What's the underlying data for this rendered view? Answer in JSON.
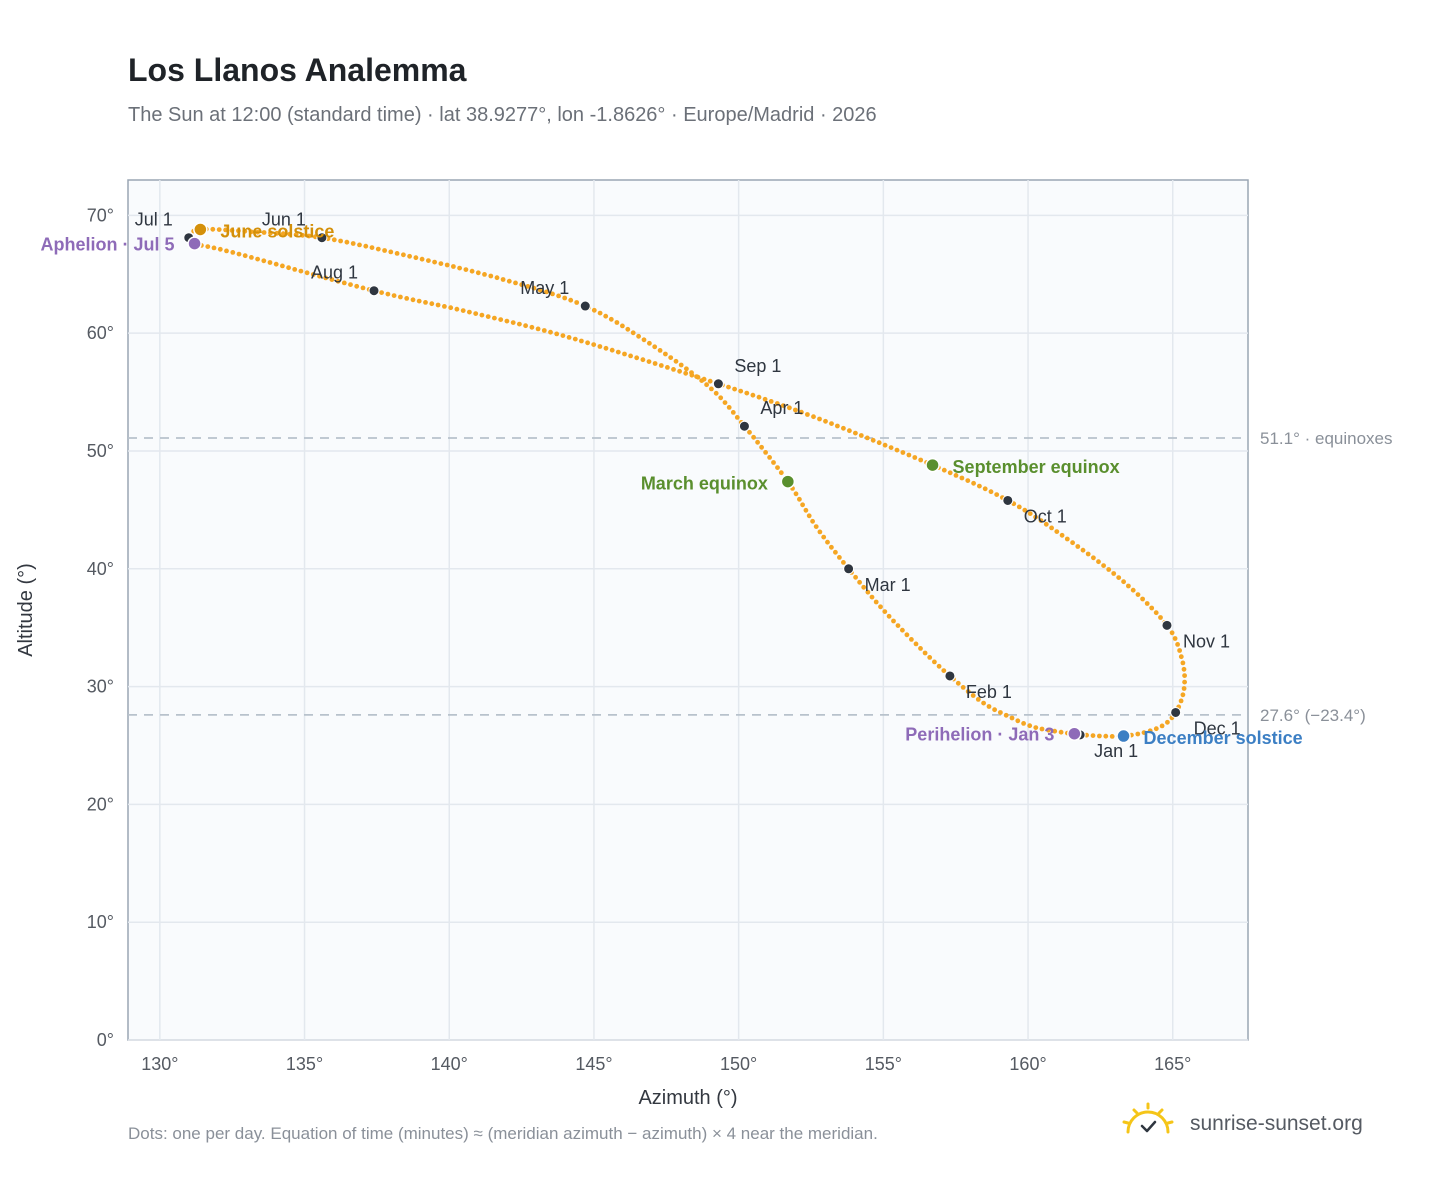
{
  "header": {
    "title": "Los Llanos Analemma",
    "subtitle": "The Sun at 12:00 (standard time) · lat 38.9277°, lon -1.8626° · Europe/Madrid · 2026"
  },
  "footer": {
    "note": "Dots: one per day. Equation of time (minutes) ≈ (meridian azimuth − azimuth) × 4 near the meridian.",
    "brand": "sunrise-sunset.org"
  },
  "colors": {
    "curve": "#f5a623",
    "month_marker": "#2f3640",
    "perihelion": "#8e6bb8",
    "aphelion": "#8e6bb8",
    "equinox": "#5a8f2e",
    "june_solstice": "#d4900a",
    "december_solstice": "#3c7fc4",
    "reference_line": "#b8c2cc",
    "plot_bg": "#f9fbfd",
    "grid": "#e3e8ee",
    "brand_sun": "#f5c518"
  },
  "chart_data": {
    "type": "scatter",
    "xlabel": "Azimuth (°)",
    "ylabel": "Altitude (°)",
    "xlim": [
      128.9,
      167.6
    ],
    "ylim": [
      0,
      73
    ],
    "xticks": [
      "130°",
      "135°",
      "140°",
      "145°",
      "150°",
      "155°",
      "160°",
      "165°"
    ],
    "xtick_values": [
      130,
      135,
      140,
      145,
      150,
      155,
      160,
      165
    ],
    "yticks": [
      "0°",
      "10°",
      "20°",
      "30°",
      "40°",
      "50°",
      "60°",
      "70°"
    ],
    "ytick_values": [
      0,
      10,
      20,
      30,
      40,
      50,
      60,
      70
    ],
    "grid": true,
    "reference_lines": [
      {
        "y": 51.1,
        "label": "51.1° · equinoxes"
      },
      {
        "y": 27.6,
        "label": "27.6° (−23.4°)"
      }
    ],
    "path_points": [
      {
        "date": "Jan 1",
        "x": 161.8,
        "y": 25.9
      },
      {
        "date": "Jan 8",
        "x": 160.3,
        "y": 26.5
      },
      {
        "date": "Jan 15",
        "x": 159.3,
        "y": 27.5
      },
      {
        "date": "Jan 22",
        "x": 158.4,
        "y": 28.7
      },
      {
        "date": "Feb 1",
        "x": 157.3,
        "y": 30.9
      },
      {
        "date": "Feb 10",
        "x": 156.3,
        "y": 33.2
      },
      {
        "date": "Feb 20",
        "x": 155.0,
        "y": 36.5
      },
      {
        "date": "Mar 1",
        "x": 153.8,
        "y": 40.0
      },
      {
        "date": "Mar 10",
        "x": 152.7,
        "y": 43.5
      },
      {
        "date": "Mar 20",
        "x": 151.7,
        "y": 47.4
      },
      {
        "date": "Apr 1",
        "x": 150.2,
        "y": 52.1
      },
      {
        "date": "Apr 10",
        "x": 149.0,
        "y": 55.4
      },
      {
        "date": "Apr 20",
        "x": 147.0,
        "y": 59.0
      },
      {
        "date": "May 1",
        "x": 144.7,
        "y": 62.3
      },
      {
        "date": "May 10",
        "x": 141.8,
        "y": 64.6
      },
      {
        "date": "May 20",
        "x": 138.5,
        "y": 66.6
      },
      {
        "date": "Jun 1",
        "x": 135.6,
        "y": 68.1
      },
      {
        "date": "Jun 10",
        "x": 133.2,
        "y": 68.6
      },
      {
        "date": "Jun 21",
        "x": 131.4,
        "y": 68.8
      },
      {
        "date": "Jul 1",
        "x": 131.0,
        "y": 68.1
      },
      {
        "date": "Jul 5",
        "x": 131.2,
        "y": 67.6
      },
      {
        "date": "Jul 15",
        "x": 132.6,
        "y": 66.8
      },
      {
        "date": "Aug 1",
        "x": 137.4,
        "y": 63.6
      },
      {
        "date": "Aug 10",
        "x": 140.5,
        "y": 61.9
      },
      {
        "date": "Aug 20",
        "x": 144.2,
        "y": 59.6
      },
      {
        "date": "Sep 1",
        "x": 149.3,
        "y": 55.7
      },
      {
        "date": "Sep 10",
        "x": 152.7,
        "y": 52.8
      },
      {
        "date": "Sep 22",
        "x": 156.7,
        "y": 48.8
      },
      {
        "date": "Oct 1",
        "x": 159.3,
        "y": 45.8
      },
      {
        "date": "Oct 10",
        "x": 161.2,
        "y": 42.8
      },
      {
        "date": "Oct 20",
        "x": 163.3,
        "y": 38.9
      },
      {
        "date": "Nov 1",
        "x": 164.8,
        "y": 35.2
      },
      {
        "date": "Nov 10",
        "x": 165.3,
        "y": 32.5
      },
      {
        "date": "Nov 20",
        "x": 165.4,
        "y": 30.0
      },
      {
        "date": "Dec 1",
        "x": 165.1,
        "y": 27.8
      },
      {
        "date": "Dec 10",
        "x": 164.5,
        "y": 26.5
      },
      {
        "date": "Dec 21",
        "x": 163.3,
        "y": 25.8
      },
      {
        "date": "Jan 1",
        "x": 161.8,
        "y": 25.9
      }
    ],
    "month_markers": [
      {
        "label": "Jan 1",
        "x": 161.8,
        "y": 25.9
      },
      {
        "label": "Feb 1",
        "x": 157.3,
        "y": 30.9
      },
      {
        "label": "Mar 1",
        "x": 153.8,
        "y": 40.0
      },
      {
        "label": "Apr 1",
        "x": 150.2,
        "y": 52.1
      },
      {
        "label": "May 1",
        "x": 144.7,
        "y": 62.3
      },
      {
        "label": "Jun 1",
        "x": 135.6,
        "y": 68.1
      },
      {
        "label": "Jul 1",
        "x": 131.0,
        "y": 68.1
      },
      {
        "label": "Aug 1",
        "x": 137.4,
        "y": 63.6
      },
      {
        "label": "Sep 1",
        "x": 149.3,
        "y": 55.7
      },
      {
        "label": "Oct 1",
        "x": 159.3,
        "y": 45.8
      },
      {
        "label": "Nov 1",
        "x": 164.8,
        "y": 35.2
      },
      {
        "label": "Dec 1",
        "x": 165.1,
        "y": 27.8
      }
    ],
    "events": [
      {
        "label": "June solstice",
        "x": 131.4,
        "y": 68.8,
        "color": "#d4900a"
      },
      {
        "label": "Aphelion · Jul 5",
        "x": 131.2,
        "y": 67.6,
        "color": "#8e6bb8"
      },
      {
        "label": "March equinox",
        "x": 151.7,
        "y": 47.4,
        "color": "#5a8f2e"
      },
      {
        "label": "September equinox",
        "x": 156.7,
        "y": 48.8,
        "color": "#5a8f2e"
      },
      {
        "label": "Perihelion · Jan 3",
        "x": 161.6,
        "y": 26.0,
        "color": "#8e6bb8"
      },
      {
        "label": "December solstice",
        "x": 163.3,
        "y": 25.8,
        "color": "#3c7fc4"
      }
    ]
  }
}
